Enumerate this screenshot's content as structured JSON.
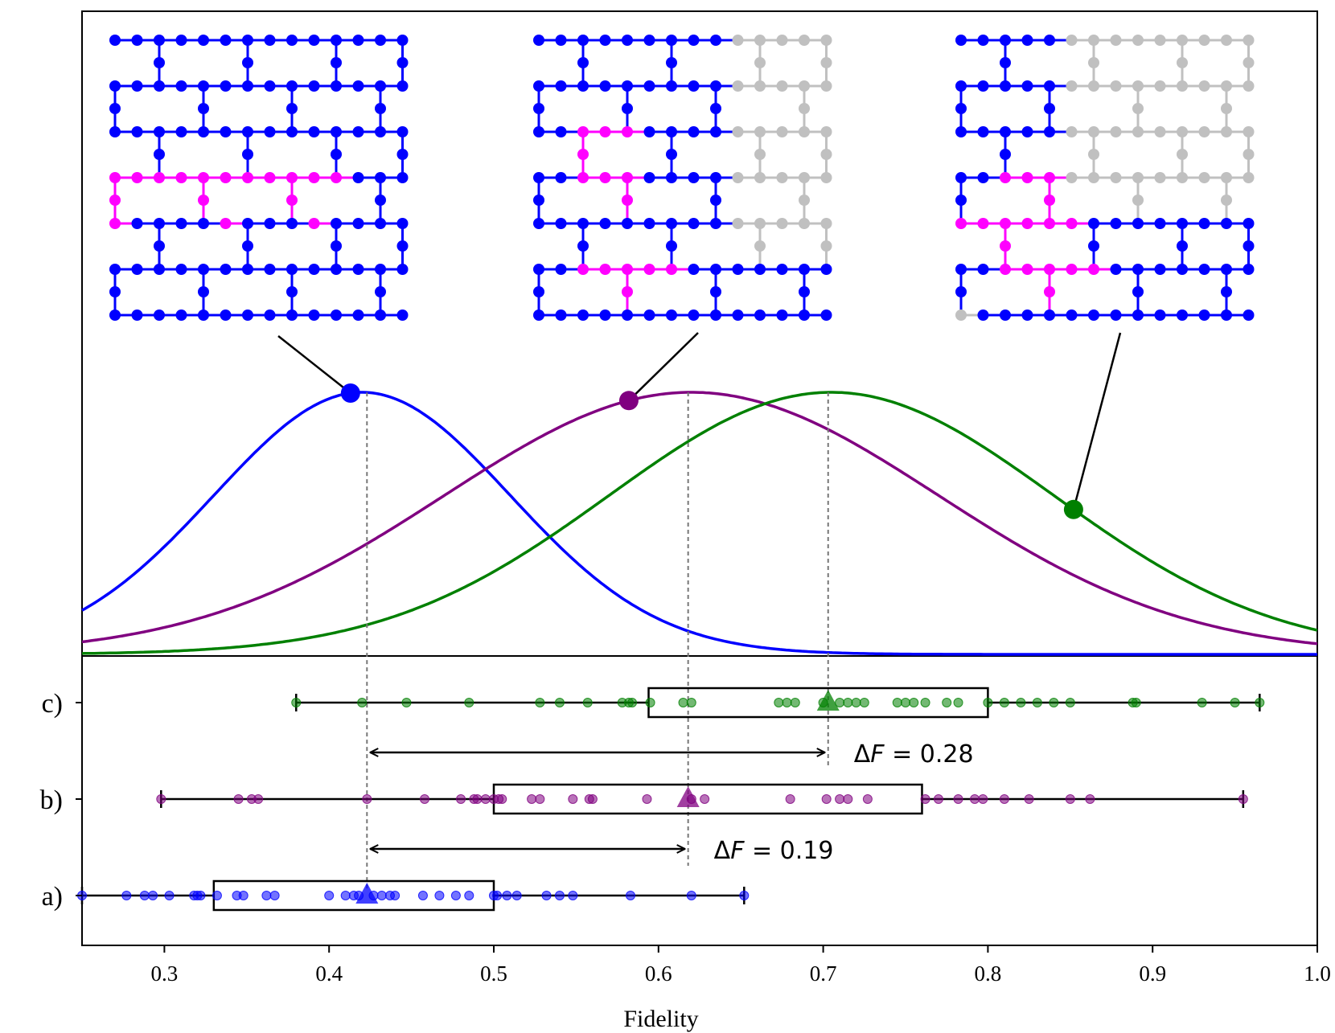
{
  "chart_data": {
    "type": "scatter",
    "xlabel": "Fidelity",
    "xlim": [
      0.25,
      1.0
    ],
    "x_ticks": [
      "0.3",
      "0.4",
      "0.5",
      "0.6",
      "0.7",
      "0.8",
      "0.9",
      "1.0"
    ],
    "x_tick_values": [
      0.3,
      0.4,
      0.5,
      0.6,
      0.7,
      0.8,
      0.9,
      1.0
    ],
    "grid": false,
    "series": [
      {
        "name": "a)",
        "color": "#0000ff",
        "mean": 0.423,
        "box": {
          "q1": 0.33,
          "q3": 0.5,
          "whisker_low": 0.25,
          "whisker_high": 0.652
        },
        "gaussian": {
          "mu": 0.42,
          "sigma": 0.09
        },
        "marker_fidelity": 0.413,
        "points": [
          0.25,
          0.277,
          0.288,
          0.293,
          0.303,
          0.318,
          0.32,
          0.322,
          0.332,
          0.344,
          0.348,
          0.362,
          0.367,
          0.4,
          0.41,
          0.415,
          0.418,
          0.427,
          0.432,
          0.437,
          0.44,
          0.457,
          0.467,
          0.477,
          0.485,
          0.5,
          0.502,
          0.508,
          0.514,
          0.532,
          0.54,
          0.548,
          0.583,
          0.62,
          0.652
        ]
      },
      {
        "name": "b)",
        "color": "#800080",
        "mean": 0.618,
        "box": {
          "q1": 0.5,
          "q3": 0.76,
          "whisker_low": 0.298,
          "whisker_high": 0.955
        },
        "gaussian": {
          "mu": 0.62,
          "sigma": 0.15
        },
        "marker_fidelity": 0.582,
        "points": [
          0.298,
          0.345,
          0.353,
          0.357,
          0.423,
          0.458,
          0.48,
          0.488,
          0.49,
          0.495,
          0.5,
          0.503,
          0.505,
          0.523,
          0.528,
          0.548,
          0.558,
          0.56,
          0.593,
          0.62,
          0.628,
          0.68,
          0.702,
          0.71,
          0.715,
          0.727,
          0.762,
          0.77,
          0.782,
          0.792,
          0.797,
          0.81,
          0.825,
          0.85,
          0.862,
          0.955
        ]
      },
      {
        "name": "c)",
        "color": "#008000",
        "mean": 0.703,
        "box": {
          "q1": 0.594,
          "q3": 0.8,
          "whisker_low": 0.38,
          "whisker_high": 0.965
        },
        "gaussian": {
          "mu": 0.705,
          "sigma": 0.135
        },
        "marker_fidelity": 0.852,
        "points": [
          0.38,
          0.42,
          0.447,
          0.485,
          0.528,
          0.54,
          0.557,
          0.578,
          0.582,
          0.584,
          0.595,
          0.615,
          0.62,
          0.673,
          0.678,
          0.683,
          0.7,
          0.71,
          0.715,
          0.72,
          0.725,
          0.745,
          0.75,
          0.755,
          0.762,
          0.775,
          0.782,
          0.8,
          0.81,
          0.82,
          0.83,
          0.84,
          0.85,
          0.888,
          0.89,
          0.93,
          0.95,
          0.965
        ]
      }
    ],
    "annotations": [
      {
        "label": "ΔF = 0.28",
        "delta_prefix": "Δ",
        "italic": "F",
        "rest": " = 0.28",
        "from": 0.423,
        "to": 0.703
      },
      {
        "label": "ΔF = 0.19",
        "delta_prefix": "Δ",
        "italic": "F",
        "rest": " = 0.19",
        "from": 0.423,
        "to": 0.618
      }
    ]
  }
}
